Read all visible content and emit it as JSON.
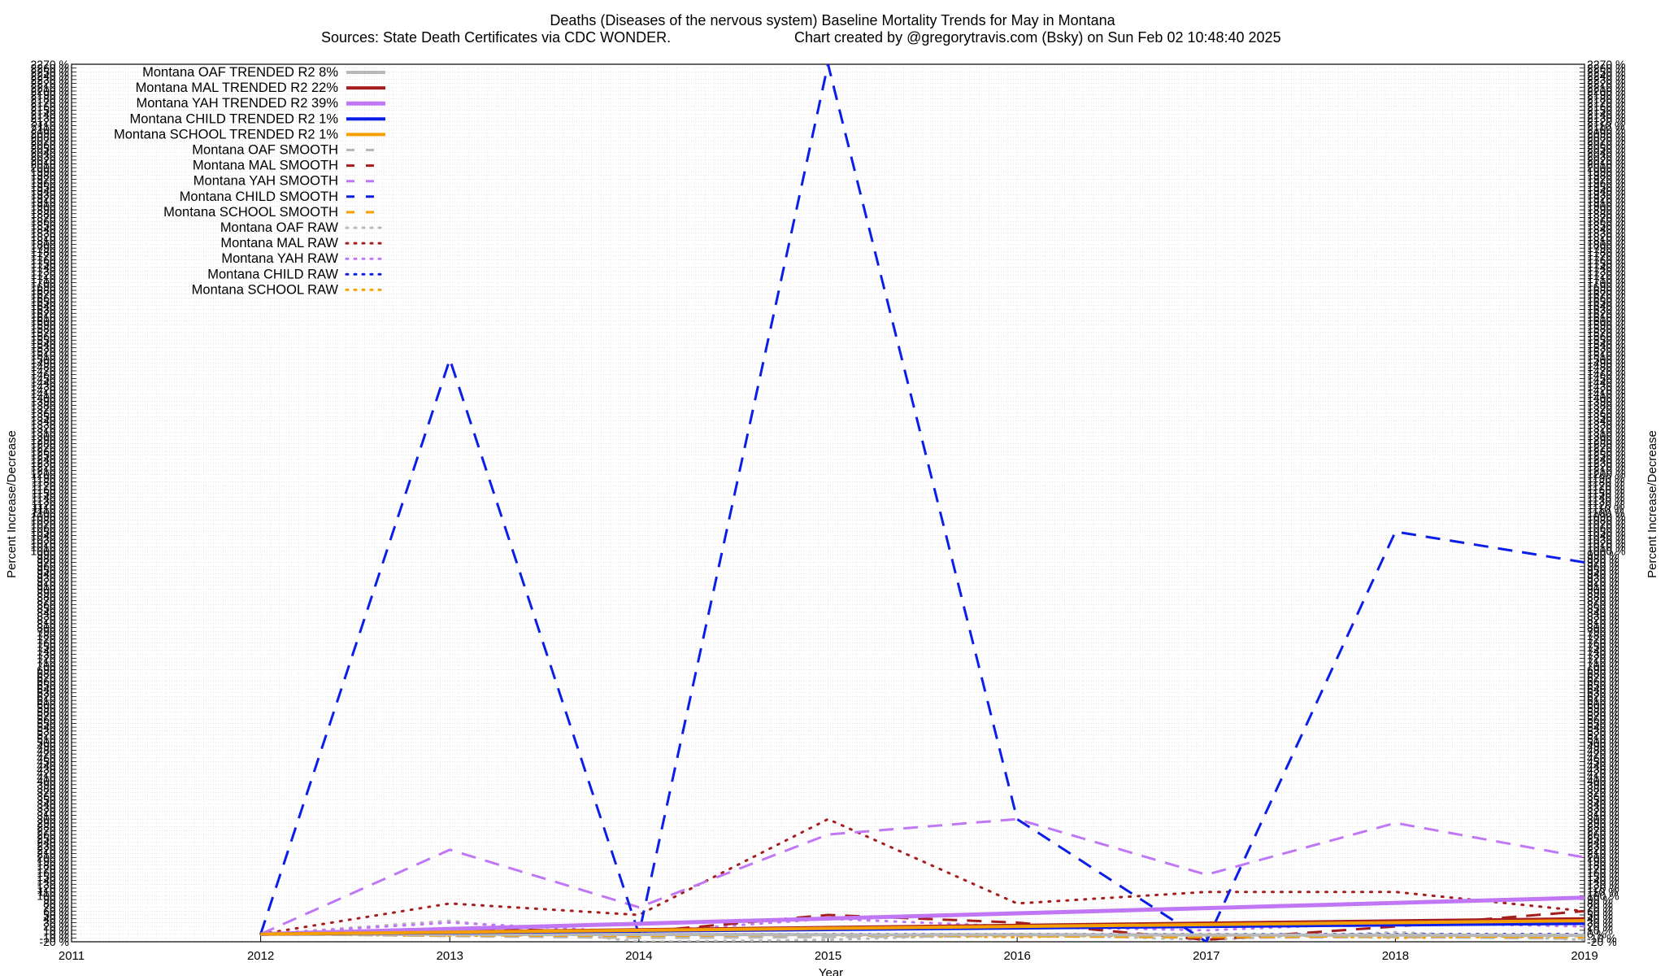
{
  "chart_data": {
    "type": "line",
    "title": "Deaths (Diseases of the nervous system)  Baseline Mortality Trends for May in Montana",
    "subtitle_left": "Sources: State Death Certificates via CDC WONDER.",
    "subtitle_right": "Chart created by @gregorytravis.com (Bsky) on Sun Feb 02 10:48:40 2025",
    "xlabel": "Year",
    "ylabel_left": "Percent Increase/Decrease",
    "ylabel_right": "Percent Increase/Decrease",
    "xlim": [
      2011,
      2019
    ],
    "ylim": [
      -20,
      2270
    ],
    "x_ticks": [
      "2011",
      "2012",
      "2013",
      "2014",
      "2015",
      "2016",
      "2017",
      "2018",
      "2019"
    ],
    "y_tick_step": 10,
    "y_tick_suffix": " %",
    "grid": true,
    "legend_position": "top-left",
    "series": [
      {
        "name": "Montana OAF TRENDED R2",
        "r2_label": "8%",
        "style": "solid",
        "color": "#b8b8b8",
        "width": 4,
        "x": [
          2012,
          2019
        ],
        "y": [
          0,
          -3
        ]
      },
      {
        "name": "Montana MAL TRENDED R2",
        "r2_label": "22%",
        "style": "solid",
        "color": "#a51d1d",
        "width": 4,
        "x": [
          2012,
          2019
        ],
        "y": [
          0,
          40
        ]
      },
      {
        "name": "Montana YAH TRENDED R2",
        "r2_label": "39%",
        "style": "solid",
        "color": "#c077f5",
        "width": 5,
        "x": [
          2012,
          2019
        ],
        "y": [
          0,
          95
        ]
      },
      {
        "name": "Montana CHILD TRENDED R2",
        "r2_label": "1%",
        "style": "solid",
        "color": "#0b1ee8",
        "width": 4,
        "x": [
          2012,
          2019
        ],
        "y": [
          0,
          28
        ]
      },
      {
        "name": "Montana SCHOOL TRENDED R2",
        "r2_label": "1%",
        "style": "solid",
        "color": "#f5a000",
        "width": 4,
        "x": [
          2012,
          2019
        ],
        "y": [
          0,
          35
        ]
      },
      {
        "name": "Montana OAF SMOOTH",
        "style": "dashed",
        "color": "#b8b8b8",
        "width": 3,
        "x": [
          2012,
          2013,
          2014,
          2015,
          2016,
          2017,
          2018,
          2019
        ],
        "y": [
          0,
          -5,
          -10,
          -8,
          -5,
          -10,
          -8,
          -12
        ]
      },
      {
        "name": "Montana MAL SMOOTH",
        "style": "dashed",
        "color": "#a51d1d",
        "width": 3,
        "x": [
          2012,
          2013,
          2014,
          2015,
          2016,
          2017,
          2018,
          2019
        ],
        "y": [
          0,
          15,
          5,
          50,
          30,
          -15,
          20,
          60
        ]
      },
      {
        "name": "Montana YAH SMOOTH",
        "style": "dashed",
        "color": "#c077f5",
        "width": 3,
        "x": [
          2012,
          2013,
          2014,
          2015,
          2016,
          2017,
          2018,
          2019
        ],
        "y": [
          0,
          220,
          70,
          260,
          300,
          155,
          290,
          200
        ]
      },
      {
        "name": "Montana CHILD SMOOTH",
        "style": "dashed",
        "color": "#0b1ee8",
        "width": 3,
        "x": [
          2012,
          2013,
          2014,
          2015,
          2016,
          2017,
          2018,
          2019
        ],
        "y": [
          0,
          1500,
          0,
          2270,
          300,
          -20,
          1050,
          970
        ]
      },
      {
        "name": "Montana SCHOOL SMOOTH",
        "style": "dashed",
        "color": "#f5a000",
        "width": 3,
        "x": [
          2012,
          2013,
          2014,
          2015,
          2016,
          2017,
          2018,
          2019
        ],
        "y": [
          0,
          -3,
          -5,
          -2,
          -5,
          -8,
          -5,
          -8
        ]
      },
      {
        "name": "Montana OAF RAW",
        "style": "dotted",
        "color": "#b8b8b8",
        "width": 3,
        "x": [
          2012,
          2013,
          2014,
          2015,
          2016,
          2017,
          2018,
          2019
        ],
        "y": [
          0,
          35,
          -20,
          -15,
          0,
          -15,
          5,
          -15
        ]
      },
      {
        "name": "Montana MAL RAW",
        "style": "dotted",
        "color": "#a51d1d",
        "width": 3,
        "x": [
          2012,
          2013,
          2014,
          2015,
          2016,
          2017,
          2018,
          2019
        ],
        "y": [
          0,
          80,
          50,
          300,
          80,
          110,
          110,
          60
        ]
      },
      {
        "name": "Montana YAH RAW",
        "style": "dotted",
        "color": "#c077f5",
        "width": 3,
        "x": [
          2012,
          2013,
          2014,
          2015,
          2016,
          2017,
          2018,
          2019
        ],
        "y": [
          0,
          30,
          5,
          40,
          20,
          10,
          30,
          20
        ]
      },
      {
        "name": "Montana CHILD RAW",
        "style": "dotted",
        "color": "#0b1ee8",
        "width": 3,
        "x": [
          2012,
          2013,
          2014,
          2015,
          2016,
          2017,
          2018,
          2019
        ],
        "y": [
          0,
          0,
          0,
          0,
          0,
          0,
          0,
          0
        ]
      },
      {
        "name": "Montana SCHOOL RAW",
        "style": "dotted",
        "color": "#f5a000",
        "width": 3,
        "x": [
          2012,
          2013,
          2014,
          2015,
          2016,
          2017,
          2018,
          2019
        ],
        "y": [
          0,
          -5,
          0,
          -3,
          -8,
          0,
          -10,
          -5
        ]
      }
    ]
  }
}
